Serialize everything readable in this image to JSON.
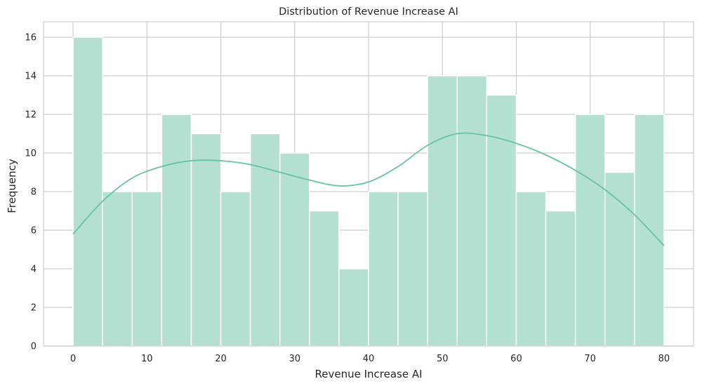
{
  "chart_data": {
    "type": "bar",
    "title": "Distribution of Revenue Increase AI",
    "xlabel": "Revenue Increase AI",
    "ylabel": "Frequency",
    "bin_edges": [
      0,
      4,
      8,
      12,
      16,
      20,
      24,
      28,
      32,
      36,
      40,
      44,
      48,
      52,
      56,
      60,
      64,
      68,
      72,
      76,
      80
    ],
    "values": [
      16,
      8,
      8,
      12,
      11,
      8,
      11,
      10,
      7,
      4,
      8,
      8,
      14,
      14,
      13,
      8,
      7,
      12,
      9,
      12
    ],
    "xlim": [
      -4,
      84
    ],
    "ylim": [
      0,
      16.8
    ],
    "xticks": [
      0,
      10,
      20,
      30,
      40,
      50,
      60,
      70,
      80
    ],
    "yticks": [
      0,
      2,
      4,
      6,
      8,
      10,
      12,
      14,
      16
    ],
    "kde": {
      "x": [
        0,
        4,
        8,
        12,
        16,
        20,
        24,
        28,
        32,
        36,
        40,
        44,
        48,
        52,
        56,
        60,
        64,
        68,
        72,
        76,
        80
      ],
      "y": [
        5.8,
        7.5,
        8.7,
        9.3,
        9.6,
        9.6,
        9.4,
        9.0,
        8.6,
        8.3,
        8.5,
        9.3,
        10.4,
        11.0,
        10.9,
        10.5,
        9.9,
        9.1,
        8.1,
        6.8,
        5.2
      ]
    },
    "grid": true,
    "legend": "none",
    "colors": {
      "bar_fill": "#b3e0d1",
      "bar_edge": "#ffffff",
      "kde_line": "#66c2a5",
      "grid": "#cccccc",
      "text": "#262626"
    }
  }
}
